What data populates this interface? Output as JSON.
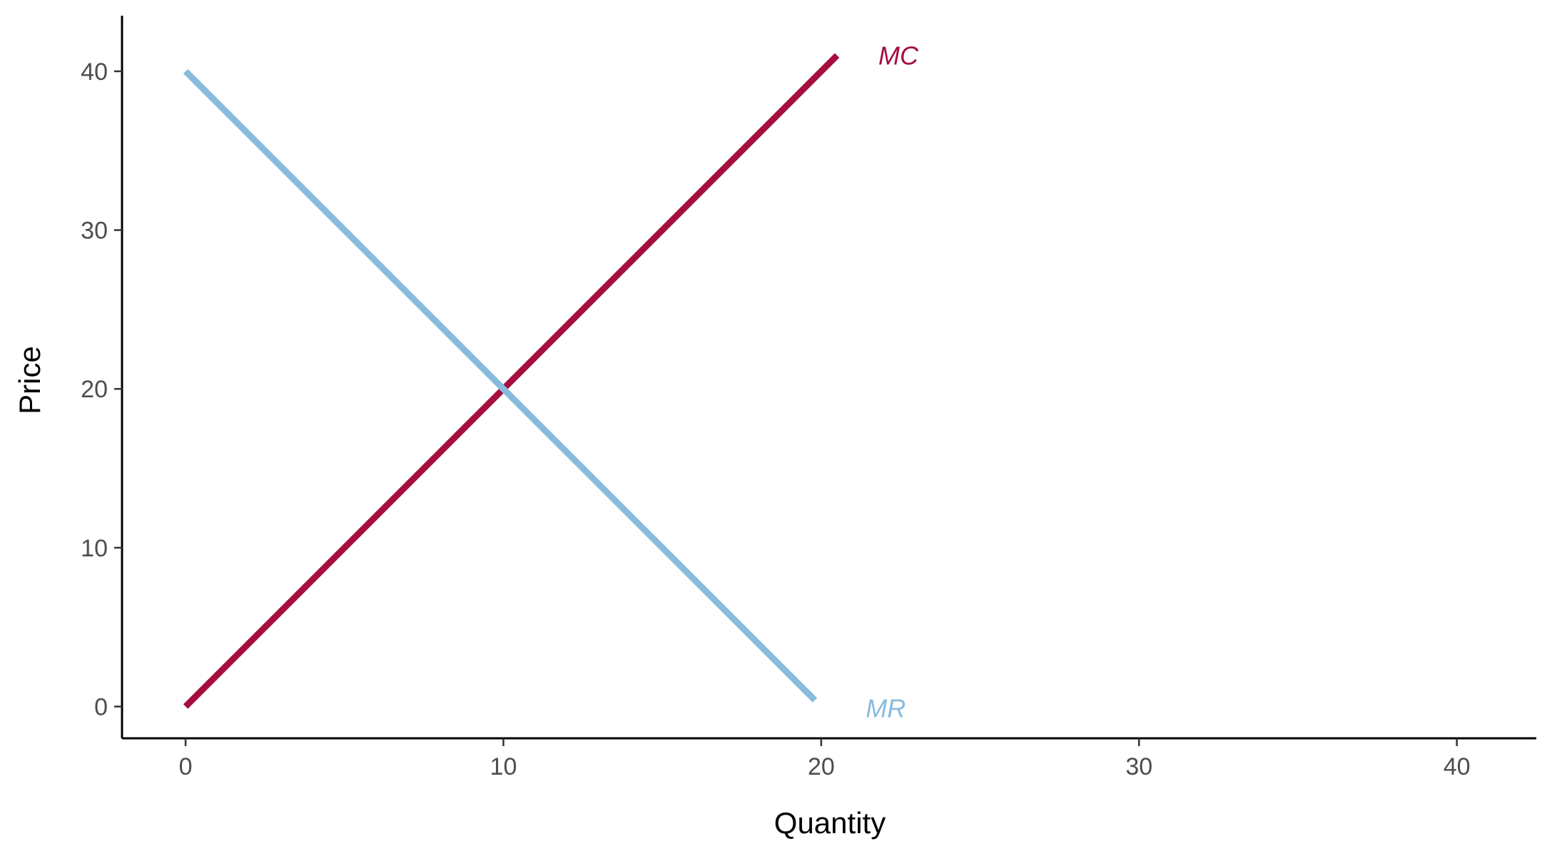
{
  "chart_data": {
    "type": "line",
    "title": "",
    "xlabel": "Quantity",
    "ylabel": "Price",
    "xlim": [
      -2,
      42.5
    ],
    "ylim": [
      -2,
      43.5
    ],
    "xticks": [
      0,
      10,
      20,
      30,
      40
    ],
    "yticks": [
      0,
      10,
      20,
      30,
      40
    ],
    "grid": false,
    "legend": "none",
    "series": [
      {
        "name": "MC",
        "color": "#a50f3e",
        "points": [
          [
            0,
            0
          ],
          [
            20.5,
            41
          ]
        ],
        "label_at": [
          21.8,
          41
        ]
      },
      {
        "name": "MR",
        "color": "#88bbdd",
        "points": [
          [
            0,
            40
          ],
          [
            19.8,
            0.4
          ]
        ],
        "label_at": [
          21.4,
          -0.1
        ]
      }
    ]
  }
}
